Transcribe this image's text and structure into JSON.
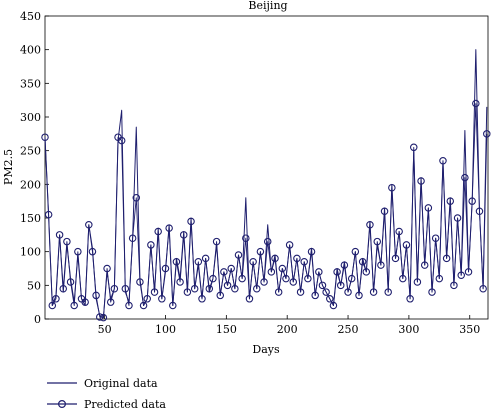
{
  "chart_data": {
    "type": "line",
    "title": "Beijing",
    "xlabel": "Days",
    "ylabel": "PM2.5",
    "xlim": [
      1,
      365
    ],
    "ylim": [
      0,
      450
    ],
    "xticks": [
      50,
      100,
      150,
      200,
      250,
      300,
      350
    ],
    "yticks": [
      0,
      50,
      100,
      150,
      200,
      250,
      300,
      350,
      400,
      450
    ],
    "grid": false,
    "legend_position": "bottom-left, below plot",
    "colors": {
      "line": "#1f1f6e",
      "marker": "#1f1f6e"
    },
    "series": [
      {
        "name": "Original data",
        "style": "line",
        "x": [
          1,
          4,
          7,
          10,
          13,
          16,
          19,
          22,
          25,
          28,
          31,
          34,
          37,
          40,
          43,
          46,
          49,
          52,
          55,
          58,
          61,
          64,
          67,
          70,
          73,
          76,
          79,
          82,
          85,
          88,
          91,
          94,
          97,
          100,
          103,
          106,
          109,
          112,
          115,
          118,
          121,
          124,
          127,
          130,
          133,
          136,
          139,
          142,
          145,
          148,
          151,
          154,
          157,
          160,
          163,
          166,
          169,
          172,
          175,
          178,
          181,
          184,
          187,
          190,
          193,
          196,
          199,
          202,
          205,
          208,
          211,
          214,
          217,
          220,
          223,
          226,
          229,
          232,
          235,
          238,
          241,
          244,
          247,
          250,
          253,
          256,
          259,
          262,
          265,
          268,
          271,
          274,
          277,
          280,
          283,
          286,
          289,
          292,
          295,
          298,
          301,
          304,
          307,
          310,
          313,
          316,
          319,
          322,
          325,
          328,
          331,
          334,
          337,
          340,
          343,
          346,
          349,
          352,
          355,
          358,
          361,
          364
        ],
        "values": [
          270,
          150,
          20,
          35,
          125,
          40,
          110,
          60,
          25,
          95,
          30,
          20,
          140,
          105,
          30,
          5,
          2,
          70,
          30,
          45,
          265,
          310,
          40,
          25,
          120,
          285,
          60,
          20,
          30,
          110,
          40,
          135,
          30,
          70,
          140,
          20,
          90,
          60,
          130,
          40,
          150,
          45,
          80,
          30,
          90,
          40,
          60,
          110,
          35,
          70,
          50,
          75,
          45,
          95,
          60,
          180,
          30,
          85,
          45,
          100,
          55,
          140,
          70,
          95,
          40,
          75,
          60,
          110,
          55,
          90,
          40,
          85,
          60,
          105,
          35,
          70,
          50,
          40,
          30,
          20,
          75,
          50,
          85,
          40,
          60,
          100,
          35,
          90,
          70,
          145,
          40,
          110,
          80,
          165,
          40,
          200,
          90,
          130,
          60,
          110,
          30,
          250,
          55,
          210,
          80,
          165,
          40,
          120,
          60,
          235,
          90,
          180,
          50,
          150,
          65,
          280,
          70,
          175,
          400,
          160,
          45,
          315
        ]
      },
      {
        "name": "Predicted data",
        "style": "line+circle",
        "x": [
          1,
          4,
          7,
          10,
          13,
          16,
          19,
          22,
          25,
          28,
          31,
          34,
          37,
          40,
          43,
          46,
          49,
          52,
          55,
          58,
          61,
          64,
          67,
          70,
          73,
          76,
          79,
          82,
          85,
          88,
          91,
          94,
          97,
          100,
          103,
          106,
          109,
          112,
          115,
          118,
          121,
          124,
          127,
          130,
          133,
          136,
          139,
          142,
          145,
          148,
          151,
          154,
          157,
          160,
          163,
          166,
          169,
          172,
          175,
          178,
          181,
          184,
          187,
          190,
          193,
          196,
          199,
          202,
          205,
          208,
          211,
          214,
          217,
          220,
          223,
          226,
          229,
          232,
          235,
          238,
          241,
          244,
          247,
          250,
          253,
          256,
          259,
          262,
          265,
          268,
          271,
          274,
          277,
          280,
          283,
          286,
          289,
          292,
          295,
          298,
          301,
          304,
          307,
          310,
          313,
          316,
          319,
          322,
          325,
          328,
          331,
          334,
          337,
          340,
          343,
          346,
          349,
          352,
          355,
          358,
          361,
          364
        ],
        "values": [
          270,
          155,
          20,
          30,
          125,
          45,
          115,
          55,
          20,
          100,
          30,
          25,
          140,
          100,
          35,
          3,
          2,
          75,
          25,
          45,
          270,
          265,
          45,
          20,
          120,
          180,
          55,
          20,
          30,
          110,
          40,
          130,
          30,
          75,
          135,
          20,
          85,
          55,
          125,
          40,
          145,
          45,
          85,
          30,
          90,
          45,
          60,
          115,
          35,
          70,
          50,
          75,
          45,
          95,
          60,
          120,
          30,
          85,
          45,
          100,
          55,
          115,
          70,
          90,
          40,
          75,
          60,
          110,
          55,
          90,
          40,
          85,
          60,
          100,
          35,
          70,
          50,
          40,
          30,
          20,
          70,
          50,
          80,
          40,
          60,
          100,
          35,
          85,
          70,
          140,
          40,
          115,
          80,
          160,
          40,
          195,
          90,
          130,
          60,
          110,
          30,
          255,
          55,
          205,
          80,
          165,
          40,
          120,
          60,
          235,
          90,
          175,
          50,
          150,
          65,
          210,
          70,
          175,
          320,
          160,
          45,
          275
        ]
      }
    ]
  }
}
